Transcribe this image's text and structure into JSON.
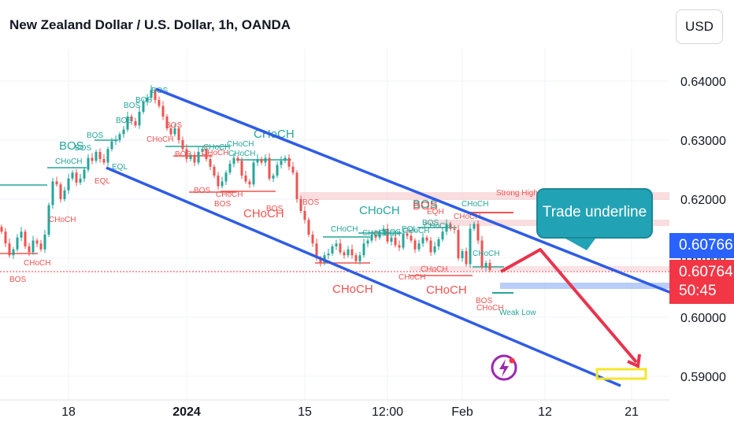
{
  "header": {
    "title": "New Zealand Dollar / U.S. Dollar, 1h, OANDA",
    "currency": "USD"
  },
  "price_labels": {
    "last_price": "0.60766",
    "current_price": "0.60764",
    "countdown": "50:45"
  },
  "callout": {
    "text": "Trade underline"
  },
  "colors": {
    "up": "#26a69a",
    "down": "#ef5350",
    "channel": "#2e5ce6",
    "accent_blue": "#2962ff",
    "accent_red": "#f23645",
    "arrow": "#e8344e",
    "callout_fill": "#22a3b5",
    "target_box": "#f5e62a"
  },
  "icons": {
    "logo": "lightning-bolt-icon"
  },
  "chart_data": {
    "type": "line",
    "title": "New Zealand Dollar / U.S. Dollar, 1h, OANDA",
    "xlabel": "",
    "ylabel": "",
    "ylim": [
      0.588,
      0.644
    ],
    "y_ticks": [
      "0.64000",
      "0.63000",
      "0.62000",
      "0.61000",
      "0.60000",
      "0.59000"
    ],
    "y_tick_values": [
      0.64,
      0.63,
      0.62,
      0.61,
      0.6,
      0.59
    ],
    "x_ticks": [
      {
        "label": "18",
        "bold": false
      },
      {
        "label": "2024",
        "bold": true
      },
      {
        "label": "15",
        "bold": false
      },
      {
        "label": "12:00",
        "bold": false
      },
      {
        "label": "Feb",
        "bold": false
      },
      {
        "label": "12",
        "bold": false
      },
      {
        "label": "21",
        "bold": false
      }
    ],
    "x_tick_index": [
      15,
      45,
      75,
      96,
      115,
      136,
      158
    ],
    "x_range": [
      0,
      168
    ],
    "grid": true,
    "series": [
      {
        "type": "candles",
        "x": [
          0,
          1,
          2,
          3,
          4,
          5,
          6,
          7,
          8,
          9,
          10,
          11,
          12,
          13,
          14,
          15,
          16,
          17,
          18,
          19,
          20,
          21,
          22,
          23,
          24,
          25,
          26,
          27,
          28,
          29,
          30,
          31,
          32,
          33,
          34,
          35,
          36,
          37,
          38,
          39,
          40,
          41,
          42,
          43,
          44,
          45,
          46,
          47,
          48,
          49,
          50,
          51,
          52,
          53,
          54,
          55,
          56,
          57,
          58,
          59,
          60,
          61,
          62,
          63,
          64,
          65,
          66,
          67,
          68,
          69,
          70,
          71,
          72,
          73,
          74,
          75,
          76,
          77,
          78,
          79,
          80,
          81,
          82,
          83,
          84,
          85,
          86,
          87,
          88,
          89,
          90,
          91,
          92,
          93,
          94,
          95,
          96,
          97,
          98,
          99,
          100,
          101,
          102,
          103,
          104,
          105,
          106,
          107,
          108,
          109,
          110,
          111,
          112,
          113,
          114,
          115,
          116,
          117,
          118,
          119,
          120,
          121,
          122,
          123,
          124
        ],
        "values": [
          0.6145,
          0.6125,
          0.6105,
          0.6115,
          0.6135,
          0.6145,
          0.612,
          0.611,
          0.613,
          0.6125,
          0.6115,
          0.614,
          0.619,
          0.623,
          0.6225,
          0.62,
          0.6215,
          0.6235,
          0.6245,
          0.6228,
          0.6235,
          0.625,
          0.627,
          0.6265,
          0.628,
          0.6268,
          0.6262,
          0.6285,
          0.6298,
          0.63,
          0.631,
          0.6318,
          0.634,
          0.6332,
          0.6325,
          0.6348,
          0.6365,
          0.6372,
          0.6385,
          0.6368,
          0.6358,
          0.634,
          0.632,
          0.631,
          0.632,
          0.63,
          0.6285,
          0.6268,
          0.6275,
          0.6262,
          0.628,
          0.6285,
          0.6268,
          0.6255,
          0.624,
          0.6222,
          0.623,
          0.6245,
          0.626,
          0.627,
          0.6265,
          0.624,
          0.623,
          0.6225,
          0.6262,
          0.6268,
          0.6262,
          0.627,
          0.6235,
          0.624,
          0.6258,
          0.6265,
          0.627,
          0.6255,
          0.6245,
          0.62,
          0.618,
          0.6165,
          0.614,
          0.6125,
          0.61,
          0.6092,
          0.6105,
          0.6108,
          0.612,
          0.6125,
          0.611,
          0.6105,
          0.6115,
          0.6105,
          0.6095,
          0.6105,
          0.6125,
          0.613,
          0.614,
          0.6135,
          0.6145,
          0.615,
          0.6128,
          0.6135,
          0.6122,
          0.6118,
          0.6142,
          0.6138,
          0.613,
          0.6115,
          0.6125,
          0.6135,
          0.613,
          0.611,
          0.612,
          0.6132,
          0.6145,
          0.6158,
          0.615,
          0.6148,
          0.61,
          0.6112,
          0.609,
          0.615,
          0.6158,
          0.613,
          0.6085,
          0.6092,
          0.608
        ]
      }
    ],
    "annotations": [
      "BOS",
      "CHoCH",
      "EQL",
      "EQH",
      "Strong High",
      "Weak Low",
      "Trade underline"
    ]
  },
  "overlay_labels": [
    {
      "text": "BOS",
      "color": "up",
      "size": "l"
    },
    {
      "text": "CHoCH",
      "color": "up",
      "size": "s"
    },
    {
      "text": "BOS",
      "color": "up",
      "size": "s"
    },
    {
      "text": "BOS",
      "color": "up",
      "size": "s"
    },
    {
      "text": "BOS",
      "color": "up",
      "size": "s"
    },
    {
      "text": "BOS",
      "color": "up",
      "size": "s"
    },
    {
      "text": "BOS",
      "color": "up",
      "size": "s"
    },
    {
      "text": "CHoCH",
      "color": "up",
      "size": "l"
    },
    {
      "text": "CHoCH",
      "color": "up",
      "size": "s"
    },
    {
      "text": "CHoCH",
      "color": "up",
      "size": "s"
    },
    {
      "text": "CHoCH",
      "color": "up",
      "size": "s"
    },
    {
      "text": "BOS",
      "color": "up",
      "size": "s"
    },
    {
      "text": "CHoCH",
      "color": "up",
      "size": "l"
    },
    {
      "text": "BOS",
      "color": "up",
      "size": "l"
    },
    {
      "text": "CHoCH",
      "color": "up",
      "size": "s"
    },
    {
      "text": "CHoCH",
      "color": "up",
      "size": "s"
    },
    {
      "text": "CHoCH",
      "color": "up",
      "size": "s"
    },
    {
      "text": "BOS",
      "color": "up",
      "size": "s"
    },
    {
      "text": "CHoCH",
      "color": "up",
      "size": "s"
    },
    {
      "text": "CHoCH",
      "color": "up",
      "size": "s"
    },
    {
      "text": "BOS",
      "color": "up",
      "size": "s"
    },
    {
      "text": "CHoCH",
      "color": "up",
      "size": "s"
    },
    {
      "text": "EQL",
      "color": "up",
      "size": "s"
    },
    {
      "text": "CHoCH",
      "color": "up",
      "size": "s"
    },
    {
      "text": "EQL",
      "color": "up",
      "size": "s"
    },
    {
      "text": "Weak Low",
      "color": "up",
      "size": "s"
    },
    {
      "text": "BOS",
      "color": "down",
      "size": "s"
    },
    {
      "text": "CHoCH",
      "color": "down",
      "size": "s"
    },
    {
      "text": "CHoCH",
      "color": "down",
      "size": "s"
    },
    {
      "text": "CHoCH",
      "color": "down",
      "size": "s"
    },
    {
      "text": "BOS",
      "color": "down",
      "size": "s"
    },
    {
      "text": "BOS",
      "color": "down",
      "size": "s"
    },
    {
      "text": "CHoCH",
      "color": "down",
      "size": "s"
    },
    {
      "text": "BOS",
      "color": "down",
      "size": "s"
    },
    {
      "text": "BOS",
      "color": "down",
      "size": "s"
    },
    {
      "text": "CHoCH",
      "color": "down",
      "size": "l"
    },
    {
      "text": "BOS",
      "color": "down",
      "size": "s"
    },
    {
      "text": "CHoCH",
      "color": "down",
      "size": "s"
    },
    {
      "text": "CHoCH",
      "color": "down",
      "size": "s"
    },
    {
      "text": "BOS",
      "color": "down",
      "size": "s"
    },
    {
      "text": "CHoCH",
      "color": "down",
      "size": "l"
    },
    {
      "text": "CHoCH",
      "color": "down",
      "size": "l"
    },
    {
      "text": "CHoCH",
      "color": "down",
      "size": "s"
    },
    {
      "text": "EQH",
      "color": "down",
      "size": "s"
    },
    {
      "text": "BOS",
      "color": "down",
      "size": "s"
    },
    {
      "text": "CHoCH",
      "color": "down",
      "size": "s"
    },
    {
      "text": "Strong High",
      "color": "down",
      "size": "s"
    },
    {
      "text": "BOS",
      "color": "down",
      "size": "l"
    },
    {
      "text": "EQL",
      "color": "down",
      "size": "s"
    },
    {
      "text": "CHoCH",
      "color": "down",
      "size": "s"
    }
  ]
}
